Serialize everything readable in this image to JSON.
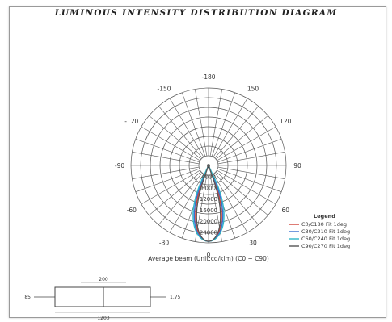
{
  "title": "LUMINOUS INTENSITY DISTRIBUTION DIAGRAM",
  "diagram": {
    "angle_labels": [
      {
        "text": "-180",
        "angle": 0
      },
      {
        "text": "-150",
        "angle": -30
      },
      {
        "text": "150",
        "angle": 30
      },
      {
        "text": "-120",
        "angle": -60
      },
      {
        "text": "120",
        "angle": 60
      },
      {
        "text": "-90",
        "angle": -90
      },
      {
        "text": "90",
        "angle": 90
      },
      {
        "text": "-60",
        "angle": -120
      },
      {
        "text": "60",
        "angle": 120
      },
      {
        "text": "-30",
        "angle": -150
      },
      {
        "text": "30",
        "angle": 150
      },
      {
        "text": "0",
        "angle": 180
      }
    ],
    "ring_labels": [
      "0",
      "4000",
      "8000",
      "12000",
      "16000",
      "20000",
      "24000"
    ],
    "caption": "Average beam (Unit:cd/klm) (C0 ~ C90)",
    "legend": {
      "title": "Legend",
      "items": [
        {
          "label": "C0/C180  Fit 1deg",
          "color": "#d0453a"
        },
        {
          "label": "C30/C210  Fit 1deg",
          "color": "#3a6fd0"
        },
        {
          "label": "C60/C240  Fit 1deg",
          "color": "#2fb7c9"
        },
        {
          "label": "C90/C270  Fit 1deg",
          "color": "#555555"
        }
      ]
    },
    "curves": [
      {
        "name": "C0",
        "color": "#d0453a",
        "width_deg": 22
      },
      {
        "name": "C30",
        "color": "#3a6fd0",
        "width_deg": 24
      },
      {
        "name": "C60",
        "color": "#2fb7c9",
        "width_deg": 26
      },
      {
        "name": "C90",
        "color": "#555555",
        "width_deg": 20
      }
    ]
  },
  "fixture": {
    "top_dim": "200",
    "bottom_dim": "1200",
    "left_dim": "85",
    "right_dim": "1.75"
  }
}
